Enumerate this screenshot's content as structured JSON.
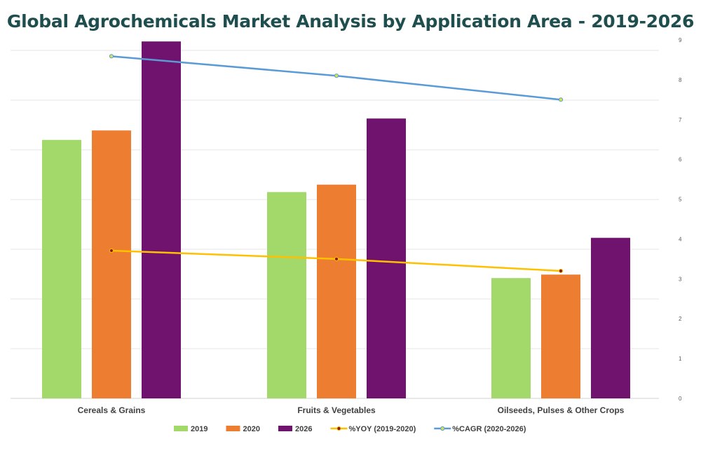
{
  "chart_data": {
    "type": "bar",
    "title": "Global Agrochemicals Market Analysis by Application Area - 2019-2026",
    "categories": [
      "Cereals & Grains",
      "Fruits & Vegetables",
      "Oilseeds, Pulses & Other Crops"
    ],
    "series": [
      {
        "name": "2019",
        "type": "bar",
        "axis": "left",
        "color": "#a3d86a",
        "values": [
          5.2,
          4.15,
          2.42
        ]
      },
      {
        "name": "2020",
        "type": "bar",
        "axis": "left",
        "color": "#ed7d31",
        "values": [
          5.39,
          4.3,
          2.49
        ]
      },
      {
        "name": "2026",
        "type": "bar",
        "axis": "left",
        "color": "#70136f",
        "values": [
          7.18,
          5.63,
          3.23
        ]
      },
      {
        "name": "%YOY (2019-2020)",
        "type": "line",
        "axis": "right",
        "color": "#ffc000",
        "marker_color": "#8b1a1a",
        "values": [
          3.71,
          3.5,
          3.2
        ]
      },
      {
        "name": "%CAGR (2020-2026)",
        "type": "line",
        "axis": "right",
        "color": "#5b9bd5",
        "marker_color": "#d4e157",
        "values": [
          8.59,
          8.1,
          7.5
        ]
      }
    ],
    "left_ylim": [
      0,
      7.2
    ],
    "left_axis_labels_visible": false,
    "right_ylim": [
      0,
      9
    ],
    "right_ticks": [
      "0",
      "1",
      "2",
      "3",
      "4",
      "5",
      "6",
      "7",
      "8",
      "9"
    ],
    "grid": true,
    "legend_position": "bottom"
  }
}
